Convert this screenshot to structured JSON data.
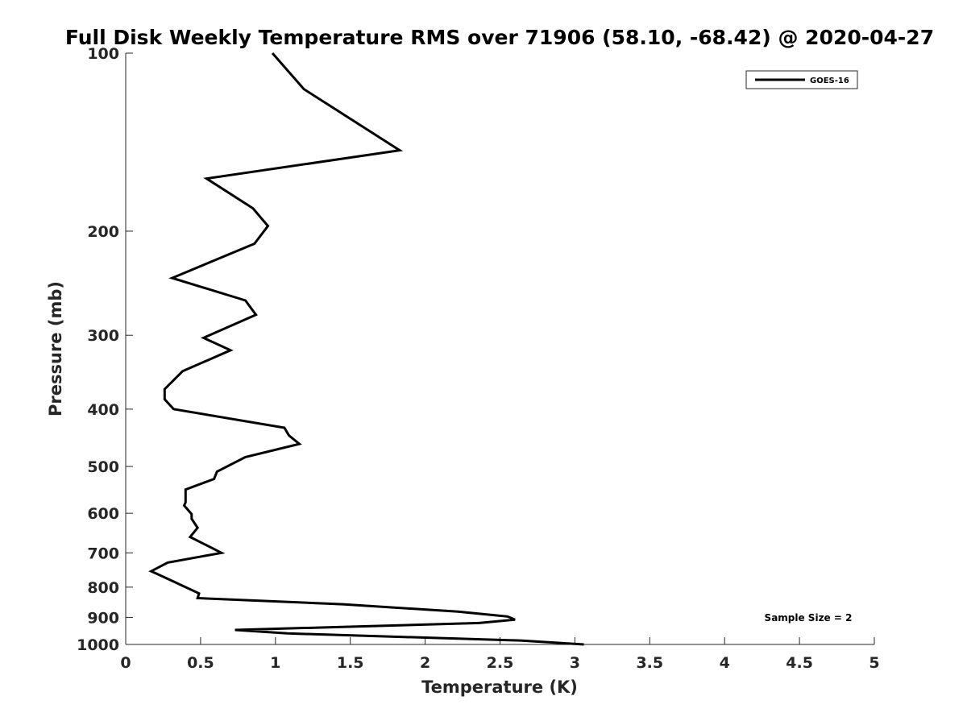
{
  "chart_data": {
    "type": "line",
    "title": "Full Disk Weekly Temperature RMS over 71906 (58.10, -68.42) @ 2020-04-27",
    "xlabel": "Temperature (K)",
    "ylabel": "Pressure (mb)",
    "xlim": [
      0,
      5
    ],
    "ylim": [
      100,
      1000
    ],
    "y_scale": "log",
    "y_reversed": true,
    "x_ticks": [
      "0",
      "0.5",
      "1",
      "1.5",
      "2",
      "2.5",
      "3",
      "3.5",
      "4",
      "4.5",
      "5"
    ],
    "y_ticks": [
      "100",
      "200",
      "300",
      "400",
      "500",
      "600",
      "700",
      "800",
      "900",
      "1000"
    ],
    "grid": false,
    "legend_position": "top-right",
    "annotation": "Sample Size = 2",
    "series": [
      {
        "name": "GOES-16",
        "color": "#000000",
        "x": [
          0.98,
          1.19,
          1.83,
          0.54,
          0.85,
          0.95,
          0.86,
          0.31,
          0.8,
          0.87,
          0.52,
          0.7,
          0.38,
          0.26,
          0.26,
          0.32,
          1.06,
          1.09,
          1.16,
          0.8,
          0.61,
          0.59,
          0.4,
          0.4,
          0.39,
          0.44,
          0.44,
          0.48,
          0.43,
          0.64,
          0.28,
          0.17,
          0.25,
          0.4,
          0.49,
          0.48,
          1.45,
          2.22,
          2.55,
          2.6,
          2.36,
          0.73,
          1.08,
          2.65,
          3.06
        ],
        "y": [
          100,
          115,
          146,
          163,
          183,
          196,
          210,
          240,
          262,
          277,
          303,
          318,
          345,
          370,
          385,
          400,
          430,
          443,
          458,
          482,
          510,
          525,
          547,
          575,
          582,
          602,
          613,
          635,
          658,
          700,
          727,
          752,
          768,
          800,
          820,
          835,
          855,
          880,
          897,
          908,
          920,
          945,
          958,
          985,
          1000
        ]
      }
    ]
  }
}
